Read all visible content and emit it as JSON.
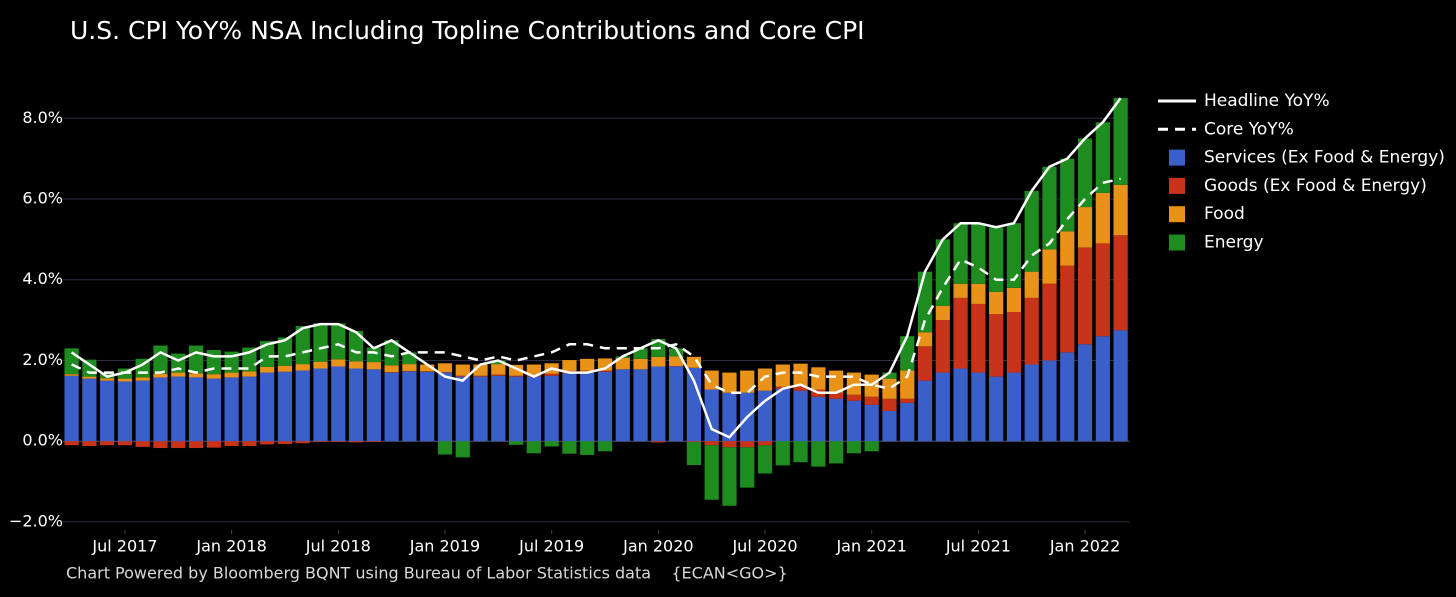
{
  "chart_data": {
    "type": "bar",
    "title": "U.S. CPI YoY% NSA Including Topline Contributions and Core CPI",
    "footnote": "Chart Powered by Bloomberg BQNT using Bureau of Labor Statistics data    {ECAN<GO>}",
    "x": [
      "2017-04",
      "2017-05",
      "2017-06",
      "2017-07",
      "2017-08",
      "2017-09",
      "2017-10",
      "2017-11",
      "2017-12",
      "2018-01",
      "2018-02",
      "2018-03",
      "2018-04",
      "2018-05",
      "2018-06",
      "2018-07",
      "2018-08",
      "2018-09",
      "2018-10",
      "2018-11",
      "2018-12",
      "2019-01",
      "2019-02",
      "2019-03",
      "2019-04",
      "2019-05",
      "2019-06",
      "2019-07",
      "2019-08",
      "2019-09",
      "2019-10",
      "2019-11",
      "2019-12",
      "2020-01",
      "2020-02",
      "2020-03",
      "2020-04",
      "2020-05",
      "2020-06",
      "2020-07",
      "2020-08",
      "2020-09",
      "2020-10",
      "2020-11",
      "2020-12",
      "2021-01",
      "2021-02",
      "2021-03",
      "2021-04",
      "2021-05",
      "2021-06",
      "2021-07",
      "2021-08",
      "2021-09",
      "2021-10",
      "2021-11",
      "2021-12",
      "2022-01",
      "2022-02",
      "2022-03"
    ],
    "xticks": [
      {
        "value": "2017-07",
        "label": "Jul 2017"
      },
      {
        "value": "2018-01",
        "label": "Jan 2018"
      },
      {
        "value": "2018-07",
        "label": "Jul 2018"
      },
      {
        "value": "2019-01",
        "label": "Jan 2019"
      },
      {
        "value": "2019-07",
        "label": "Jul 2019"
      },
      {
        "value": "2020-01",
        "label": "Jan 2020"
      },
      {
        "value": "2020-07",
        "label": "Jul 2020"
      },
      {
        "value": "2021-01",
        "label": "Jan 2021"
      },
      {
        "value": "2021-07",
        "label": "Jul 2021"
      },
      {
        "value": "2022-01",
        "label": "Jan 2022"
      }
    ],
    "ylim": [
      -2.2,
      8.7
    ],
    "yticks": [
      {
        "value": -2,
        "label": "−2.0%"
      },
      {
        "value": 0,
        "label": "0.0%"
      },
      {
        "value": 2,
        "label": "2.0%"
      },
      {
        "value": 4,
        "label": "4.0%"
      },
      {
        "value": 6,
        "label": "6.0%"
      },
      {
        "value": 8,
        "label": "8.0%"
      }
    ],
    "grid": true,
    "legend": "right",
    "series": [
      {
        "name": "Services (Ex Food & Energy)",
        "color": "#3a5fc8",
        "values": [
          1.62,
          1.55,
          1.5,
          1.48,
          1.5,
          1.58,
          1.6,
          1.58,
          1.55,
          1.58,
          1.6,
          1.7,
          1.72,
          1.75,
          1.8,
          1.85,
          1.8,
          1.78,
          1.7,
          1.73,
          1.72,
          1.7,
          1.6,
          1.6,
          1.62,
          1.6,
          1.6,
          1.62,
          1.68,
          1.7,
          1.72,
          1.78,
          1.78,
          1.85,
          1.85,
          1.82,
          1.28,
          1.2,
          1.2,
          1.25,
          1.3,
          1.25,
          1.1,
          1.05,
          1.0,
          0.9,
          0.75,
          0.95,
          1.5,
          1.7,
          1.8,
          1.7,
          1.6,
          1.7,
          1.9,
          2.0,
          2.2,
          2.4,
          2.6,
          2.75
        ]
      },
      {
        "name": "Goods (Ex Food & Energy)",
        "color": "#c8341a",
        "values": [
          -0.1,
          -0.12,
          -0.1,
          -0.1,
          -0.14,
          -0.17,
          -0.17,
          -0.17,
          -0.16,
          -0.12,
          -0.12,
          -0.08,
          -0.07,
          -0.05,
          -0.02,
          -0.02,
          -0.03,
          -0.02,
          0.01,
          0.01,
          0.01,
          0.01,
          0.02,
          0.02,
          0.03,
          0.02,
          0.04,
          0.05,
          0.06,
          0.05,
          0.03,
          0.0,
          0.0,
          -0.03,
          0.01,
          -0.02,
          -0.1,
          -0.15,
          -0.15,
          -0.1,
          0.05,
          0.12,
          0.18,
          0.15,
          0.15,
          0.2,
          0.3,
          0.1,
          0.85,
          1.3,
          1.75,
          1.7,
          1.55,
          1.5,
          1.65,
          1.9,
          2.15,
          2.4,
          2.3,
          2.35
        ]
      },
      {
        "name": "Food",
        "color": "#e8921a",
        "values": [
          0.04,
          0.05,
          0.06,
          0.07,
          0.08,
          0.09,
          0.1,
          0.1,
          0.11,
          0.12,
          0.13,
          0.14,
          0.15,
          0.16,
          0.17,
          0.18,
          0.18,
          0.18,
          0.17,
          0.17,
          0.17,
          0.22,
          0.28,
          0.28,
          0.26,
          0.27,
          0.26,
          0.26,
          0.27,
          0.29,
          0.3,
          0.28,
          0.26,
          0.24,
          0.24,
          0.27,
          0.47,
          0.5,
          0.55,
          0.55,
          0.55,
          0.55,
          0.55,
          0.55,
          0.55,
          0.55,
          0.5,
          0.7,
          0.35,
          0.35,
          0.35,
          0.5,
          0.55,
          0.6,
          0.65,
          0.85,
          0.85,
          1.0,
          1.25,
          1.25
        ]
      },
      {
        "name": "Energy",
        "color": "#1e8c1e",
        "values": [
          0.64,
          0.42,
          0.14,
          0.25,
          0.46,
          0.7,
          0.47,
          0.69,
          0.6,
          0.52,
          0.59,
          0.64,
          0.7,
          0.94,
          0.95,
          0.89,
          0.75,
          0.36,
          0.62,
          0.29,
          0.0,
          -0.33,
          -0.4,
          0.0,
          0.09,
          -0.09,
          -0.3,
          -0.13,
          -0.31,
          -0.34,
          -0.25,
          0.04,
          0.26,
          0.44,
          0.2,
          -0.57,
          -1.35,
          -1.45,
          -1.0,
          -0.7,
          -0.6,
          -0.52,
          -0.63,
          -0.55,
          -0.3,
          -0.25,
          0.15,
          0.85,
          1.5,
          1.65,
          1.5,
          1.5,
          1.6,
          1.6,
          2.0,
          2.05,
          1.8,
          1.7,
          1.75,
          2.15
        ]
      }
    ],
    "lines": [
      {
        "name": "Headline YoY%",
        "color": "#ffffff",
        "dash": false,
        "values": [
          2.2,
          1.9,
          1.6,
          1.7,
          1.9,
          2.2,
          2.0,
          2.2,
          2.1,
          2.1,
          2.2,
          2.4,
          2.5,
          2.8,
          2.9,
          2.9,
          2.7,
          2.3,
          2.5,
          2.2,
          1.9,
          1.6,
          1.5,
          1.9,
          2.0,
          1.8,
          1.6,
          1.8,
          1.7,
          1.7,
          1.8,
          2.1,
          2.3,
          2.5,
          2.3,
          1.5,
          0.3,
          0.1,
          0.6,
          1.0,
          1.3,
          1.4,
          1.2,
          1.2,
          1.4,
          1.4,
          1.7,
          2.6,
          4.2,
          5.0,
          5.4,
          5.4,
          5.3,
          5.4,
          6.2,
          6.8,
          7.0,
          7.5,
          7.9,
          8.5
        ]
      },
      {
        "name": "Core YoY%",
        "color": "#ffffff",
        "dash": true,
        "values": [
          1.9,
          1.7,
          1.7,
          1.7,
          1.7,
          1.7,
          1.8,
          1.7,
          1.8,
          1.8,
          1.8,
          2.1,
          2.1,
          2.2,
          2.3,
          2.4,
          2.2,
          2.2,
          2.1,
          2.2,
          2.2,
          2.2,
          2.1,
          2.0,
          2.1,
          2.0,
          2.1,
          2.2,
          2.4,
          2.4,
          2.3,
          2.3,
          2.3,
          2.3,
          2.4,
          2.1,
          1.4,
          1.2,
          1.2,
          1.6,
          1.7,
          1.7,
          1.6,
          1.6,
          1.6,
          1.4,
          1.3,
          1.6,
          3.0,
          3.8,
          4.5,
          4.3,
          4.0,
          4.0,
          4.6,
          4.9,
          5.5,
          6.0,
          6.4,
          6.5
        ]
      }
    ]
  }
}
